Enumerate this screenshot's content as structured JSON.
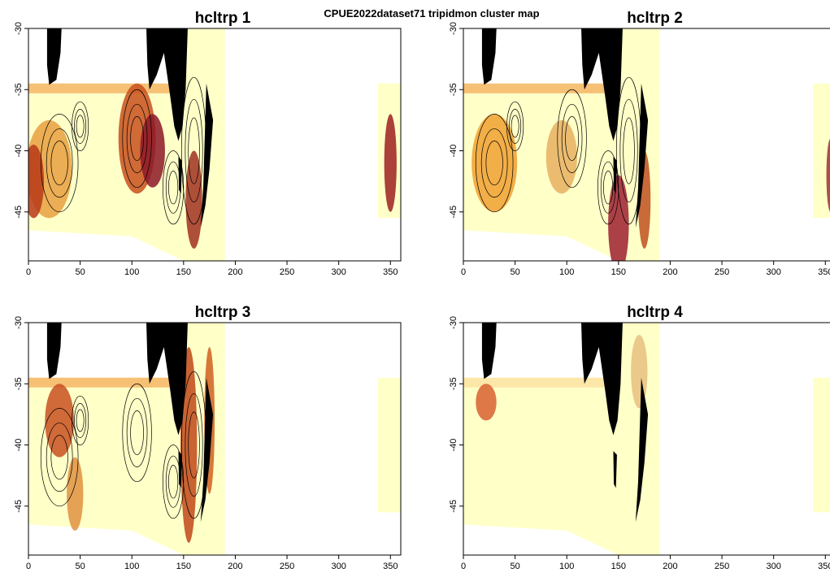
{
  "title": "CPUE2022dataset71 tripidmon cluster map",
  "chart_data": [
    {
      "type": "heatmap",
      "title": "hcltrp 1",
      "xlim": [
        0,
        360
      ],
      "ylim": [
        -49,
        -30
      ],
      "xticks": [
        0,
        50,
        100,
        150,
        200,
        250,
        300,
        350
      ],
      "yticks": [
        -30,
        -35,
        -40,
        -45
      ]
    },
    {
      "type": "heatmap",
      "title": "hcltrp 2",
      "xlim": [
        0,
        360
      ],
      "ylim": [
        -49,
        -30
      ],
      "xticks": [
        0,
        50,
        100,
        150,
        200,
        250,
        300,
        350
      ],
      "yticks": [
        -30,
        -35,
        -40,
        -45
      ]
    },
    {
      "type": "heatmap",
      "title": "hcltrp 3",
      "xlim": [
        0,
        360
      ],
      "ylim": [
        -49,
        -30
      ],
      "xticks": [
        0,
        50,
        100,
        150,
        200,
        250,
        300,
        350
      ],
      "yticks": [
        -30,
        -35,
        -40,
        -45
      ]
    },
    {
      "type": "heatmap",
      "title": "hcltrp 4",
      "xlim": [
        0,
        360
      ],
      "ylim": [
        -49,
        -30
      ],
      "xticks": [
        0,
        50,
        100,
        150,
        200,
        250,
        300,
        350
      ],
      "yticks": [
        -30,
        -35,
        -40,
        -45
      ]
    }
  ]
}
